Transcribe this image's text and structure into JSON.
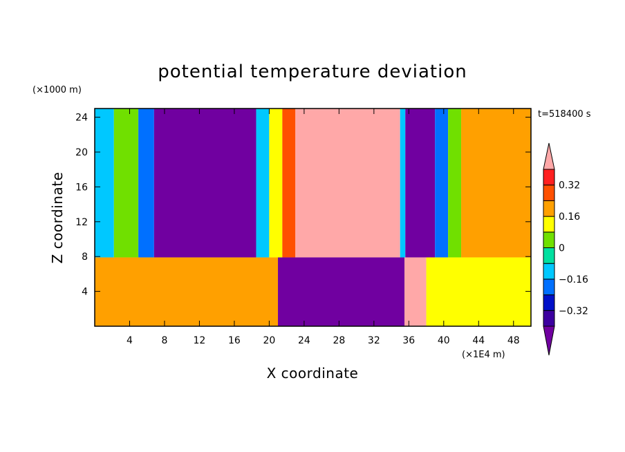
{
  "chart_data": {
    "type": "heatmap",
    "title": "potential temperature deviation",
    "xlabel": "X coordinate",
    "ylabel": "Z coordinate",
    "x_unit": "(×1E4 m)",
    "y_unit": "(×1000 m)",
    "time_label": "t=518400 s",
    "xlim": [
      0,
      50
    ],
    "ylim": [
      0,
      25
    ],
    "x_ticks": [
      "4",
      "8",
      "12",
      "16",
      "20",
      "24",
      "28",
      "32",
      "36",
      "40",
      "44",
      "48"
    ],
    "y_ticks": [
      "4",
      "8",
      "12",
      "16",
      "20",
      "24"
    ],
    "x_tick_values": [
      4,
      8,
      12,
      16,
      20,
      24,
      28,
      32,
      36,
      40,
      44,
      48
    ],
    "y_tick_values": [
      4,
      8,
      12,
      16,
      20,
      24
    ],
    "grid": false,
    "colorbar": {
      "labels": [
        "0.32",
        "0.16",
        "0",
        "−0.16",
        "−0.32"
      ],
      "label_values": [
        0.32,
        0.16,
        0,
        -0.16,
        -0.32
      ],
      "levels": [
        -0.4,
        -0.32,
        -0.24,
        -0.16,
        -0.08,
        0,
        0.08,
        0.16,
        0.24,
        0.32,
        0.4
      ],
      "colors": [
        "#7000a0",
        "#3c00a0",
        "#0010c8",
        "#0070ff",
        "#00c8ff",
        "#00e0a0",
        "#70e000",
        "#ffff00",
        "#ffa000",
        "#ff5000",
        "#ff2020",
        "#ffa8a8"
      ],
      "extend": "both"
    },
    "upper_layer_columns": [
      {
        "x0": 0.0,
        "x1": 2.2,
        "value": -0.1
      },
      {
        "x0": 2.2,
        "x1": 5.0,
        "value": 0.05
      },
      {
        "x0": 5.0,
        "x1": 6.8,
        "value": -0.2
      },
      {
        "x0": 6.8,
        "x1": 18.5,
        "value": -0.45
      },
      {
        "x0": 18.5,
        "x1": 20.0,
        "value": -0.1
      },
      {
        "x0": 20.0,
        "x1": 21.5,
        "value": 0.1
      },
      {
        "x0": 21.5,
        "x1": 23.0,
        "value": 0.3
      },
      {
        "x0": 23.0,
        "x1": 35.0,
        "value": 0.45
      },
      {
        "x0": 35.0,
        "x1": 35.6,
        "value": -0.1
      },
      {
        "x0": 35.6,
        "x1": 39.0,
        "value": -0.45
      },
      {
        "x0": 39.0,
        "x1": 40.5,
        "value": -0.2
      },
      {
        "x0": 40.5,
        "x1": 42.0,
        "value": 0.05
      },
      {
        "x0": 42.0,
        "x1": 50.0,
        "value": 0.18
      }
    ],
    "lower_layer_columns": [
      {
        "x0": 0.0,
        "x1": 21.0,
        "value": 0.2
      },
      {
        "x0": 21.0,
        "x1": 35.5,
        "value": -0.45
      },
      {
        "x0": 35.5,
        "x1": 38.0,
        "value": 0.4
      },
      {
        "x0": 38.0,
        "x1": 50.0,
        "value": 0.1
      }
    ],
    "layer_boundary_z": 7.9
  }
}
